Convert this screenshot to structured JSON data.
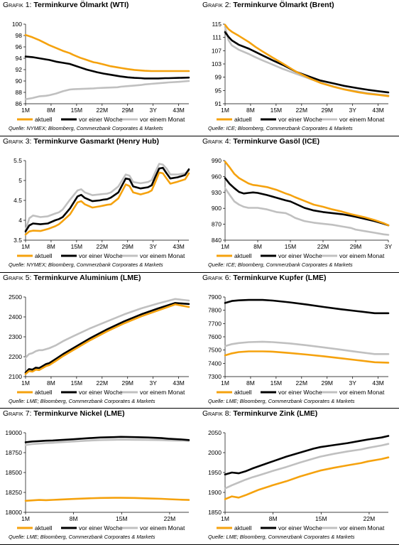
{
  "figures": [
    {
      "label": "Grafik 1:",
      "title": "Terminkurve Ölmarkt (WTI)",
      "source": "Quelle: NYMEX; Bloomberg, Commerzbank Corporates & Markets"
    },
    {
      "label": "Grafik 2:",
      "title": "Terminkurve Ölmarkt (Brent)",
      "source": "Quelle: ICE; Bloomberg, Commerzbank Corporates & Markets"
    },
    {
      "label": "Grafik 3:",
      "title": "Terminkurve Gasmarkt (Henry Hub)",
      "source": "Quelle: NYMEX; Bloomberg, Commerzbank Corporates & Markets"
    },
    {
      "label": "Grafik 4:",
      "title": "Terminkurve Gasöl (ICE)",
      "source": "Quelle: ICE; Bloomberg, Commerzbank Corporates & Markets"
    },
    {
      "label": "Grafik 5:",
      "title": "Terminkurve Aluminium (LME)",
      "source": "Quelle: LME; Bloomberg, Commerzbank Corporates & Markets"
    },
    {
      "label": "Grafik 6:",
      "title": "Terminkurve Kupfer (LME)",
      "source": "Quelle: LME; Bloomberg, Commerzbank Corporates & Markets"
    },
    {
      "label": "Grafik 7:",
      "title": "Terminkurve Nickel (LME)",
      "source": "Quelle: LME; Bloomberg, Commerzbank Corporates & Markets"
    },
    {
      "label": "Grafik 8:",
      "title": "Terminkurve Zink (LME)",
      "source": "Quelle: LME; Bloomberg, Commerzbank Corporates & Markets"
    }
  ],
  "colors": {
    "aktuell": "#f5a20e",
    "woche": "#000000",
    "monat": "#c0c0c0"
  },
  "chart_data": [
    {
      "type": "line",
      "title": "Terminkurve Ölmarkt (WTI)",
      "categories": [
        "1M",
        "8M",
        "15M",
        "22M",
        "29M",
        "3Y",
        "43M"
      ],
      "x": [
        1,
        3,
        5,
        7,
        8,
        10,
        12,
        14,
        15,
        17,
        19,
        21,
        22,
        24,
        26,
        28,
        29,
        31,
        33,
        35,
        36,
        38,
        40,
        42,
        43,
        46,
        49
      ],
      "ylim": [
        86,
        100
      ],
      "yticks": [
        86,
        88,
        90,
        92,
        94,
        96,
        98,
        100
      ],
      "series": [
        {
          "name": "aktuell",
          "values": [
            98.1,
            97.7,
            97.2,
            96.6,
            96.3,
            95.8,
            95.3,
            94.9,
            94.6,
            94.1,
            93.7,
            93.3,
            93.2,
            92.9,
            92.6,
            92.4,
            92.3,
            92.1,
            91.95,
            91.85,
            91.8,
            91.75,
            91.75,
            91.75,
            91.75,
            91.75,
            91.75
          ]
        },
        {
          "name": "vor einer Woche",
          "values": [
            94.3,
            94.2,
            94.0,
            93.8,
            93.7,
            93.4,
            93.2,
            93.0,
            92.8,
            92.4,
            92.0,
            91.7,
            91.55,
            91.3,
            91.1,
            90.9,
            90.8,
            90.65,
            90.55,
            90.5,
            90.45,
            90.45,
            90.45,
            90.5,
            90.5,
            90.55,
            90.6
          ]
        },
        {
          "name": "vor einem Monat",
          "values": [
            86.8,
            87.0,
            87.3,
            87.4,
            87.5,
            87.8,
            88.2,
            88.5,
            88.55,
            88.6,
            88.65,
            88.7,
            88.75,
            88.8,
            88.85,
            88.9,
            89.0,
            89.1,
            89.2,
            89.3,
            89.4,
            89.5,
            89.6,
            89.7,
            89.75,
            89.85,
            90.0
          ]
        }
      ]
    },
    {
      "type": "line",
      "title": "Terminkurve Ölmarkt (Brent)",
      "categories": [
        "1M",
        "8M",
        "15M",
        "22M",
        "29M",
        "3Y",
        "43M"
      ],
      "x": [
        1,
        2,
        3,
        5,
        8,
        10,
        12,
        15,
        18,
        22,
        26,
        29,
        33,
        36,
        40,
        43,
        46,
        49
      ],
      "ylim": [
        91,
        115
      ],
      "yticks": [
        91,
        95,
        99,
        103,
        107,
        111,
        115
      ],
      "series": [
        {
          "name": "aktuell",
          "values": [
            114.8,
            113.5,
            112.7,
            111.5,
            109.6,
            108.1,
            106.8,
            104.9,
            103.1,
            100.6,
            98.6,
            97.3,
            96.1,
            95.3,
            94.5,
            94.0,
            93.7,
            93.3
          ]
        },
        {
          "name": "vor einer Woche",
          "values": [
            112.6,
            111.2,
            110.1,
            108.8,
            107.6,
            106.6,
            105.6,
            104.1,
            102.7,
            100.6,
            99.1,
            98.0,
            97.1,
            96.4,
            95.7,
            95.2,
            94.8,
            94.4
          ]
        },
        {
          "name": "vor einem Monat",
          "values": [
            114.2,
            110.2,
            108.6,
            107.3,
            106.0,
            105.0,
            104.1,
            102.8,
            101.5,
            100.0,
            98.5,
            97.4,
            96.2,
            95.4,
            94.7,
            94.2,
            93.8,
            93.5
          ]
        }
      ]
    },
    {
      "type": "line",
      "title": "Terminkurve Gasmarkt (Henry Hub)",
      "categories": [
        "1M",
        "8M",
        "15M",
        "22M",
        "29M",
        "3Y",
        "43M"
      ],
      "x": [
        1,
        2,
        3,
        5,
        7,
        9,
        10,
        11,
        13,
        15,
        16,
        17,
        19,
        21,
        22,
        23,
        24,
        26,
        28,
        29,
        30,
        32,
        34,
        35,
        36,
        37,
        38,
        39,
        40,
        42,
        44,
        45
      ],
      "ylim": [
        3.5,
        5.5
      ],
      "yticks": [
        3.5,
        4.0,
        4.5,
        5.0,
        5.5
      ],
      "series": [
        {
          "name": "aktuell",
          "values": [
            3.64,
            3.72,
            3.74,
            3.73,
            3.78,
            3.85,
            3.9,
            3.98,
            4.15,
            4.45,
            4.48,
            4.4,
            4.32,
            4.35,
            4.37,
            4.39,
            4.4,
            4.55,
            4.9,
            4.86,
            4.7,
            4.65,
            4.7,
            4.75,
            4.97,
            5.2,
            5.18,
            5.05,
            4.92,
            4.97,
            5.03,
            5.18
          ]
        },
        {
          "name": "vor einer Woche",
          "values": [
            3.72,
            3.87,
            3.92,
            3.9,
            3.92,
            4.0,
            4.03,
            4.08,
            4.3,
            4.6,
            4.64,
            4.56,
            4.48,
            4.5,
            4.52,
            4.53,
            4.57,
            4.7,
            5.05,
            5.03,
            4.85,
            4.8,
            4.83,
            4.88,
            5.1,
            5.3,
            5.32,
            5.18,
            5.05,
            5.08,
            5.14,
            5.28
          ]
        },
        {
          "name": "vor einem Monat",
          "values": [
            3.75,
            4.05,
            4.12,
            4.08,
            4.1,
            4.17,
            4.2,
            4.27,
            4.52,
            4.75,
            4.78,
            4.7,
            4.63,
            4.65,
            4.66,
            4.67,
            4.7,
            4.85,
            5.15,
            5.12,
            4.96,
            4.93,
            4.96,
            5.01,
            5.22,
            5.42,
            5.4,
            5.3,
            5.15,
            5.15,
            5.18,
            5.25
          ]
        }
      ]
    },
    {
      "type": "line",
      "title": "Terminkurve Gasöl (ICE)",
      "categories": [
        "1M",
        "8M",
        "15M",
        "22M",
        "29M",
        "3Y"
      ],
      "x": [
        1,
        2,
        3,
        4,
        5,
        6,
        7,
        8,
        10,
        12,
        14,
        15,
        16,
        18,
        20,
        22,
        24,
        26,
        28,
        29,
        31,
        33,
        35,
        36
      ],
      "ylim": [
        840,
        990
      ],
      "yticks": [
        840,
        870,
        900,
        930,
        960,
        990
      ],
      "series": [
        {
          "name": "aktuell",
          "values": [
            988,
            977,
            965,
            957,
            952,
            947,
            944,
            943,
            940,
            935,
            928,
            925,
            921,
            914,
            907,
            903,
            898,
            894,
            889,
            887,
            883,
            878,
            872,
            868
          ]
        },
        {
          "name": "vor einer Woche",
          "values": [
            957,
            946,
            938,
            931,
            928,
            929,
            930,
            929,
            925,
            920,
            915,
            913,
            909,
            901,
            896,
            893,
            891,
            889,
            886,
            884,
            880,
            876,
            871,
            868
          ]
        },
        {
          "name": "vor einem Monat",
          "values": [
            938,
            925,
            913,
            907,
            903,
            901,
            901,
            901,
            898,
            893,
            891,
            887,
            882,
            876,
            873,
            871,
            869,
            866,
            863,
            860,
            857,
            854,
            851,
            850
          ]
        }
      ]
    },
    {
      "type": "line",
      "title": "Terminkurve Aluminium (LME)",
      "categories": [
        "1M",
        "8M",
        "15M",
        "22M",
        "29M",
        "3Y",
        "43M"
      ],
      "x": [
        1,
        2,
        3,
        4,
        5,
        6,
        7,
        8,
        10,
        12,
        15,
        20,
        25,
        30,
        35,
        40,
        45,
        49
      ],
      "ylim": [
        2100,
        2500
      ],
      "yticks": [
        2100,
        2200,
        2300,
        2400,
        2500
      ],
      "series": [
        {
          "name": "aktuell",
          "values": [
            2113,
            2128,
            2125,
            2135,
            2133,
            2143,
            2153,
            2158,
            2180,
            2203,
            2233,
            2283,
            2328,
            2368,
            2403,
            2433,
            2463,
            2450
          ]
        },
        {
          "name": "vor einer Woche",
          "values": [
            2120,
            2138,
            2135,
            2145,
            2143,
            2153,
            2163,
            2168,
            2190,
            2213,
            2243,
            2293,
            2338,
            2378,
            2413,
            2443,
            2470,
            2465
          ]
        },
        {
          "name": "vor einem Monat",
          "values": [
            2195,
            2213,
            2218,
            2228,
            2233,
            2233,
            2238,
            2243,
            2258,
            2278,
            2303,
            2343,
            2378,
            2413,
            2443,
            2468,
            2490,
            2482
          ]
        }
      ]
    },
    {
      "type": "line",
      "title": "Terminkurve Kupfer (LME)",
      "categories": [
        "1M",
        "8M",
        "15M",
        "22M",
        "29M",
        "3Y",
        "43M"
      ],
      "x": [
        1,
        3,
        5,
        8,
        12,
        15,
        20,
        25,
        30,
        35,
        40,
        45,
        49
      ],
      "ylim": [
        7300,
        7900
      ],
      "yticks": [
        7300,
        7400,
        7500,
        7600,
        7700,
        7800,
        7900
      ],
      "series": [
        {
          "name": "aktuell",
          "values": [
            7460,
            7475,
            7485,
            7490,
            7490,
            7488,
            7478,
            7466,
            7453,
            7438,
            7423,
            7408,
            7405
          ]
        },
        {
          "name": "vor einer Woche",
          "values": [
            7855,
            7870,
            7875,
            7878,
            7878,
            7873,
            7860,
            7843,
            7825,
            7808,
            7793,
            7778,
            7778
          ]
        },
        {
          "name": "vor einem Monat",
          "values": [
            7530,
            7545,
            7553,
            7560,
            7563,
            7560,
            7550,
            7536,
            7520,
            7503,
            7486,
            7470,
            7470
          ]
        }
      ]
    },
    {
      "type": "line",
      "title": "Terminkurve Nickel (LME)",
      "categories": [
        "1M",
        "8M",
        "15M",
        "22M"
      ],
      "x": [
        1,
        2,
        3,
        4,
        5,
        6,
        8,
        10,
        12,
        14,
        15,
        17,
        19,
        21,
        22,
        24,
        25
      ],
      "ylim": [
        18000,
        19000
      ],
      "yticks": [
        18000,
        18250,
        18500,
        18750,
        19000
      ],
      "series": [
        {
          "name": "aktuell",
          "values": [
            18145,
            18150,
            18155,
            18153,
            18156,
            18160,
            18168,
            18175,
            18180,
            18182,
            18182,
            18180,
            18175,
            18170,
            18165,
            18158,
            18155
          ]
        },
        {
          "name": "vor einer Woche",
          "values": [
            18880,
            18890,
            18895,
            18900,
            18903,
            18908,
            18918,
            18930,
            18940,
            18945,
            18948,
            18945,
            18940,
            18932,
            18925,
            18915,
            18908
          ]
        },
        {
          "name": "vor einem Monat",
          "values": [
            18845,
            18858,
            18863,
            18870,
            18873,
            18880,
            18890,
            18900,
            18908,
            18912,
            18913,
            18912,
            18910,
            18907,
            18904,
            18900,
            18897
          ]
        }
      ]
    },
    {
      "type": "line",
      "title": "Terminkurve Zink (LME)",
      "categories": [
        "1M",
        "8M",
        "15M",
        "22M"
      ],
      "x": [
        1,
        2,
        3,
        4,
        5,
        6,
        8,
        10,
        12,
        14,
        15,
        17,
        19,
        21,
        22,
        24,
        25
      ],
      "ylim": [
        1850,
        2050
      ],
      "yticks": [
        1850,
        1900,
        1950,
        2000,
        2050
      ],
      "series": [
        {
          "name": "aktuell",
          "values": [
            1883,
            1890,
            1887,
            1893,
            1900,
            1907,
            1918,
            1928,
            1940,
            1950,
            1955,
            1962,
            1968,
            1974,
            1978,
            1984,
            1988
          ]
        },
        {
          "name": "vor einer Woche",
          "values": [
            1945,
            1950,
            1948,
            1953,
            1960,
            1966,
            1978,
            1990,
            2000,
            2010,
            2014,
            2019,
            2024,
            2030,
            2033,
            2038,
            2042
          ]
        },
        {
          "name": "vor einem Monat",
          "values": [
            1910,
            1918,
            1925,
            1932,
            1938,
            1943,
            1954,
            1964,
            1975,
            1985,
            1990,
            1997,
            2003,
            2008,
            2012,
            2018,
            2022
          ]
        }
      ]
    }
  ]
}
